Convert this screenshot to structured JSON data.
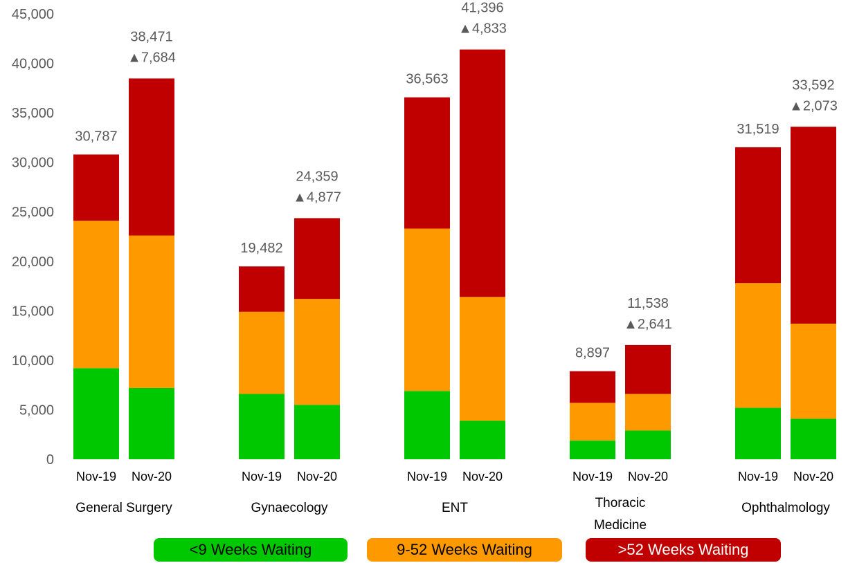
{
  "chart_data": {
    "type": "bar",
    "stacked": true,
    "ylim": [
      0,
      45000
    ],
    "yticks": [
      "45,000",
      "40,000",
      "35,000",
      "30,000",
      "25,000",
      "20,000",
      "15,000",
      "10,000",
      "5,000",
      "0"
    ],
    "yticks_values": [
      45000,
      40000,
      35000,
      30000,
      25000,
      20000,
      15000,
      10000,
      5000,
      0
    ],
    "grid": false,
    "legend_position": "bottom",
    "series_names": [
      "<9 Weeks Waiting",
      "9-52 Weeks Waiting",
      ">52  Weeks Waiting"
    ],
    "series_colors": [
      "#00c800",
      "#ff9900",
      "#c00000"
    ],
    "groups": [
      {
        "label": "General Surgery",
        "bars": [
          {
            "period": "Nov-19",
            "values": [
              9200,
              14900,
              6687
            ],
            "total_label": "30,787",
            "change_label": ""
          },
          {
            "period": "Nov-20",
            "values": [
              7200,
              15400,
              15871
            ],
            "total_label": "38,471",
            "change_label": "▲7,684"
          }
        ]
      },
      {
        "label": "Gynaecology",
        "bars": [
          {
            "period": "Nov-19",
            "values": [
              6600,
              8300,
              4582
            ],
            "total_label": "19,482",
            "change_label": ""
          },
          {
            "period": "Nov-20",
            "values": [
              5500,
              10700,
              8159
            ],
            "total_label": "24,359",
            "change_label": "▲4,877"
          }
        ]
      },
      {
        "label": "ENT",
        "bars": [
          {
            "period": "Nov-19",
            "values": [
              6900,
              16400,
              13263
            ],
            "total_label": "36,563",
            "change_label": ""
          },
          {
            "period": "Nov-20",
            "values": [
              3900,
              12500,
              24996
            ],
            "total_label": "41,396",
            "change_label": "▲4,833"
          }
        ]
      },
      {
        "label": "Thoracic Medicine",
        "bars": [
          {
            "period": "Nov-19",
            "values": [
              1900,
              3800,
              3197
            ],
            "total_label": "8,897",
            "change_label": ""
          },
          {
            "period": "Nov-20",
            "values": [
              2900,
              3700,
              4938
            ],
            "total_label": "11,538",
            "change_label": "▲2,641"
          }
        ]
      },
      {
        "label": "Ophthalmology",
        "bars": [
          {
            "period": "Nov-19",
            "values": [
              5200,
              12600,
              13719
            ],
            "total_label": "31,519",
            "change_label": ""
          },
          {
            "period": "Nov-20",
            "values": [
              4100,
              9600,
              19892
            ],
            "total_label": "33,592",
            "change_label": "▲2,073"
          }
        ]
      }
    ]
  }
}
